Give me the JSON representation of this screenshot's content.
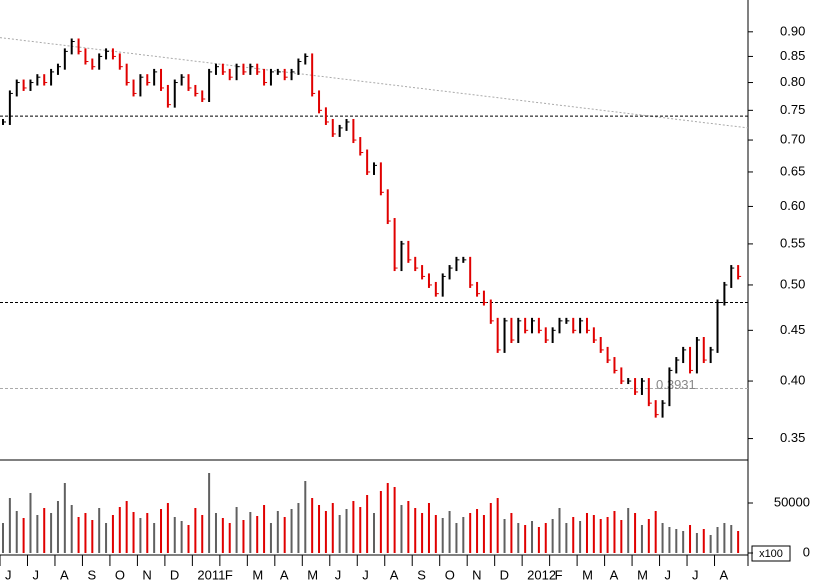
{
  "chart_data": {
    "type": "stock",
    "categories": [
      "J",
      null,
      null,
      null,
      "J",
      null,
      null,
      null,
      "A",
      null,
      null,
      null,
      "S",
      null,
      null,
      null,
      "O",
      null,
      null,
      null,
      "N",
      null,
      null,
      null,
      "D",
      null,
      null,
      null,
      "2011",
      null,
      null,
      null,
      "F",
      null,
      null,
      null,
      "M",
      null,
      null,
      null,
      "A",
      null,
      null,
      null,
      "M",
      null,
      null,
      null,
      "J",
      null,
      null,
      null,
      "J",
      null,
      null,
      null,
      "A",
      null,
      null,
      null,
      "S",
      null,
      null,
      null,
      "O",
      null,
      null,
      null,
      "N",
      null,
      null,
      null,
      "D",
      null,
      null,
      null,
      "2012",
      null,
      null,
      null,
      "F",
      null,
      null,
      null,
      "M",
      null,
      null,
      null,
      "A",
      null,
      null,
      null,
      "M",
      null,
      null,
      null,
      "J",
      null,
      null,
      null,
      "J",
      null,
      null,
      null,
      "A",
      null,
      null,
      null
    ],
    "series": [
      {
        "up_color": "#000000",
        "down_color": "#e00000",
        "values": [
          0.73,
          0.78,
          0.8,
          0.79,
          0.8,
          0.81,
          0.8,
          0.82,
          0.83,
          0.86,
          0.88,
          0.86,
          0.84,
          0.83,
          0.85,
          0.86,
          0.85,
          0.83,
          0.8,
          0.78,
          0.81,
          0.8,
          0.82,
          0.79,
          0.76,
          0.8,
          0.81,
          0.79,
          0.78,
          0.77,
          0.82,
          0.83,
          0.82,
          0.81,
          0.83,
          0.82,
          0.83,
          0.82,
          0.8,
          0.82,
          0.82,
          0.81,
          0.82,
          0.84,
          0.85,
          0.78,
          0.75,
          0.73,
          0.71,
          0.72,
          0.73,
          0.7,
          0.68,
          0.65,
          0.66,
          0.62,
          0.58,
          0.52,
          0.55,
          0.53,
          0.52,
          0.51,
          0.5,
          0.49,
          0.51,
          0.52,
          0.53,
          0.53,
          0.5,
          0.49,
          0.48,
          0.46,
          0.43,
          0.46,
          0.44,
          0.46,
          0.45,
          0.46,
          0.45,
          0.44,
          0.45,
          0.46,
          0.46,
          0.45,
          0.46,
          0.45,
          0.44,
          0.43,
          0.42,
          0.41,
          0.4,
          0.4,
          0.39,
          0.4,
          0.38,
          0.37,
          0.38,
          0.41,
          0.42,
          0.43,
          0.41,
          0.44,
          0.42,
          0.43,
          0.48,
          0.5,
          0.52,
          0.51
        ]
      },
      {
        "up_color": "#606060",
        "down_color": "#e00000",
        "values": [
          30000,
          55000,
          42000,
          35000,
          60000,
          38000,
          45000,
          40000,
          52000,
          70000,
          48000,
          36000,
          40000,
          33000,
          45000,
          30000,
          38000,
          46000,
          52000,
          41000,
          35000,
          40000,
          30000,
          44000,
          50000,
          36000,
          32000,
          28000,
          45000,
          38000,
          80000,
          40000,
          35000,
          30000,
          46000,
          33000,
          41000,
          37000,
          48000,
          30000,
          42000,
          36000,
          44000,
          50000,
          72000,
          55000,
          48000,
          42000,
          50000,
          38000,
          44000,
          52000,
          46000,
          58000,
          40000,
          62000,
          70000,
          66000,
          48000,
          52000,
          45000,
          40000,
          50000,
          38000,
          35000,
          42000,
          30000,
          36000,
          40000,
          44000,
          38000,
          50000,
          55000,
          34000,
          40000,
          30000,
          28000,
          32000,
          26000,
          30000,
          34000,
          45000,
          30000,
          36000,
          32000,
          40000,
          38000,
          34000,
          36000,
          42000,
          33000,
          45000,
          40000,
          28000,
          34000,
          42000,
          30000,
          26000,
          24000,
          22000,
          28000,
          20000,
          24000,
          18000,
          26000,
          30000,
          28000,
          22000
        ]
      }
    ],
    "ylim": [
      0.333,
      0.969
    ],
    "log_scale": true,
    "yticks": [
      {
        "value": 0.35,
        "label": "0.35"
      },
      {
        "value": 0.4,
        "label": "0.40"
      },
      {
        "value": 0.45,
        "label": "0.45"
      },
      {
        "value": 0.5,
        "label": "0.50"
      },
      {
        "value": 0.55,
        "label": "0.55"
      },
      {
        "value": 0.6,
        "label": "0.60"
      },
      {
        "value": 0.65,
        "label": "0.65"
      },
      {
        "value": 0.7,
        "label": "0.70"
      },
      {
        "value": 0.75,
        "label": "0.75"
      },
      {
        "value": 0.8,
        "label": "0.80"
      },
      {
        "value": 0.85,
        "label": "0.85"
      },
      {
        "value": 0.9,
        "label": "0.90"
      }
    ],
    "y2lim": [
      0,
      93000
    ],
    "y2ticks": [
      0,
      50000
    ],
    "volume_unit": "x100",
    "hlines": [
      0.74,
      0.48
    ],
    "support": {
      "value": 0.3931,
      "label": "0.3931"
    },
    "trendline": [
      0.888,
      0.72
    ]
  }
}
